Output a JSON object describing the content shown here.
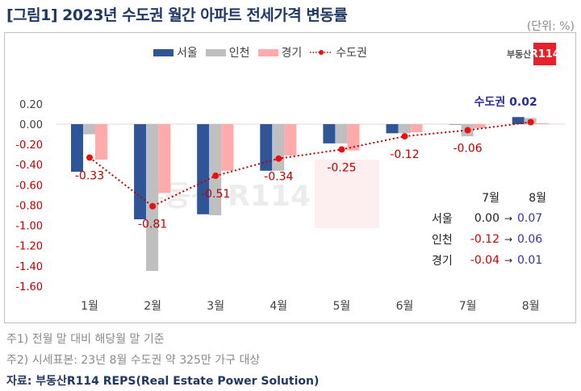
{
  "title": "[그림1] 2023년 수도권 월간 아파트 전세가격 변동률",
  "unit": "(단위: %)",
  "logo": {
    "text": "부동산",
    "badge": "R114"
  },
  "watermark": "부동산 R114",
  "colors": {
    "seoul": "#2f5597",
    "incheon": "#bfbfbf",
    "gyeonggi": "#ffabab",
    "metro": "#c00000",
    "metro_dot": "#e81010",
    "negative_tick": "#c00000"
  },
  "chart_data": {
    "type": "bar",
    "categories": [
      "1월",
      "2월",
      "3월",
      "4월",
      "5월",
      "6월",
      "7월",
      "8월"
    ],
    "ylim": [
      -1.6,
      0.2
    ],
    "yticks": [
      "0.20",
      "0.00",
      "-0.20",
      "-0.40",
      "-0.60",
      "-0.80",
      "-1.00",
      "-1.20",
      "-1.40",
      "-1.60"
    ],
    "legend_position": "top",
    "series": [
      {
        "name": "서울",
        "type": "bar",
        "values": [
          -0.47,
          -0.94,
          -0.89,
          -0.46,
          -0.19,
          -0.09,
          0.0,
          0.07
        ]
      },
      {
        "name": "인천",
        "type": "bar",
        "values": [
          -0.1,
          -1.45,
          -0.9,
          -0.46,
          -0.19,
          -0.09,
          -0.12,
          0.06
        ]
      },
      {
        "name": "경기",
        "type": "bar",
        "values": [
          -0.35,
          -0.68,
          -0.46,
          -0.31,
          -0.26,
          -0.08,
          -0.04,
          0.01
        ]
      },
      {
        "name": "수도권",
        "type": "line",
        "values": [
          -0.33,
          -0.81,
          -0.51,
          -0.34,
          -0.25,
          -0.12,
          -0.06,
          0.02
        ],
        "labels": [
          "-0.33",
          "-0.81",
          "-0.51",
          "-0.34",
          "-0.25",
          "-0.12",
          "-0.06",
          "수도권 0.02"
        ]
      }
    ]
  },
  "inset": {
    "headers": [
      "7월",
      "8월"
    ],
    "rows": [
      {
        "label": "서울",
        "jul": "0.00",
        "aug": "0.07"
      },
      {
        "label": "인천",
        "jul": "-0.12",
        "aug": "0.06"
      },
      {
        "label": "경기",
        "jul": "-0.04",
        "aug": "0.01"
      }
    ],
    "arrow": "→"
  },
  "notes": [
    "주1) 전월 말 대비 해당월 말 기준",
    "주2) 시세표본: 23년 8월 수도권 약 325만 가구 대상"
  ],
  "source": "자료: 부동산R114 REPS(Real Estate Power Solution)"
}
